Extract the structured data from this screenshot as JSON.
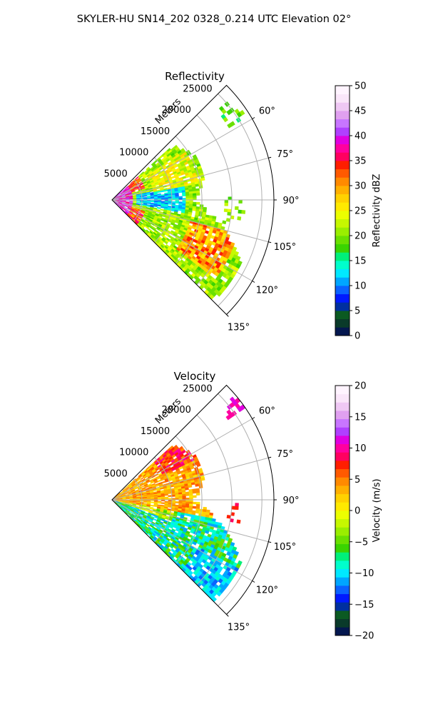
{
  "figure_title": "SKYLER-HU  SN14_202  0328_0.214 UTC Elevation 02°",
  "chart_data": [
    {
      "type": "heatmap",
      "projection": "polar-sector",
      "title": "Reflectivity",
      "radial_axis_label": "Meters",
      "radial_ticks": [
        "5000",
        "10000",
        "15000",
        "20000",
        "25000"
      ],
      "radial_max": 27000,
      "azimuth_range_deg": [
        45,
        135
      ],
      "angle_ticks": [
        "60°",
        "75°",
        "90°",
        "105°",
        "120°",
        "135°"
      ],
      "grid": true,
      "colorbar": {
        "label": "Reflectivity dBZ",
        "min": 0,
        "max": 50,
        "ticks": [
          "0",
          "5",
          "10",
          "15",
          "20",
          "25",
          "30",
          "35",
          "40",
          "45",
          "50"
        ],
        "colors": [
          "#04174f",
          "#0a3a2a",
          "#0b5a22",
          "#002fa0",
          "#0019ff",
          "#0a62ff",
          "#00a6ff",
          "#00e8ff",
          "#00ffcc",
          "#00f07a",
          "#3ad400",
          "#6ae000",
          "#9aee00",
          "#c6f800",
          "#ecff00",
          "#ffea00",
          "#ffd200",
          "#ffb000",
          "#ff8a00",
          "#ff5a00",
          "#ff1e00",
          "#ff0060",
          "#ff00a0",
          "#e000e0",
          "#b040ff",
          "#c876ff",
          "#e0a0f0",
          "#efc8f4",
          "#fae6fa",
          "#fff4ff"
        ]
      },
      "field_description": "Echoes fill the 55°–135° sector out to ~25 km; strongest (35–45 dBZ) near radar, band of 28–35 dBZ around 110°–125° at 15–20 km, weaker 10–20 dBZ elsewhere."
    },
    {
      "type": "heatmap",
      "projection": "polar-sector",
      "title": "Velocity",
      "radial_axis_label": "Meters",
      "radial_ticks": [
        "5000",
        "10000",
        "15000",
        "20000",
        "25000"
      ],
      "radial_max": 27000,
      "azimuth_range_deg": [
        45,
        135
      ],
      "angle_ticks": [
        "60°",
        "75°",
        "90°",
        "105°",
        "120°",
        "135°"
      ],
      "grid": true,
      "colorbar": {
        "label": "Velocity (m/s)",
        "min": -20,
        "max": 20,
        "ticks": [
          "−20",
          "−15",
          "−10",
          "−5",
          "0",
          "5",
          "10",
          "15",
          "20"
        ],
        "colors": [
          "#04174f",
          "#0a3a2a",
          "#0b5a22",
          "#002fa0",
          "#0019ff",
          "#0a62ff",
          "#00a6ff",
          "#00e8ff",
          "#00ffcc",
          "#00f07a",
          "#3ad400",
          "#6ae000",
          "#9aee00",
          "#c6f800",
          "#ecff00",
          "#ffea00",
          "#ffd200",
          "#ffb000",
          "#ff8a00",
          "#ff5a00",
          "#ff1e00",
          "#ff0060",
          "#ff00a0",
          "#e000e0",
          "#b040ff",
          "#c876ff",
          "#e0a0f0",
          "#efc8f4",
          "#fae6fa",
          "#fff4ff"
        ]
      },
      "field_description": "Mostly 0 to +5 m/s (yellow/orange) in the northern part of the sector, −5 to −12 m/s (green/cyan) in the southern part around 105°–135°, a few isolated +10 m/s gates near 55° at 25 km."
    }
  ]
}
